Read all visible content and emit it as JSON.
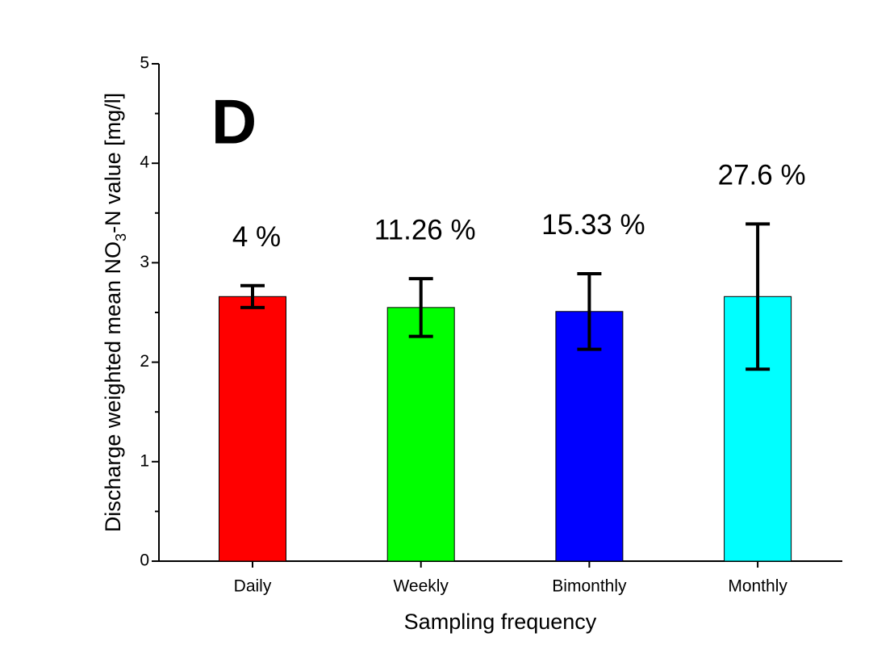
{
  "chart_data": {
    "type": "bar",
    "panel_label": "D",
    "x_label": "Sampling frequency",
    "y_label": {
      "before": "Discharge weighted mean NO",
      "subscript": "3",
      "after": "-N value [mg/l]"
    },
    "categories": [
      "Daily",
      "Weekly",
      "Bimonthly",
      "Monthly"
    ],
    "values": [
      2.66,
      2.55,
      2.51,
      2.66
    ],
    "errors": [
      0.11,
      0.29,
      0.38,
      0.73
    ],
    "colors": [
      "#ff0000",
      "#00ff00",
      "#0000ff",
      "#00ffff"
    ],
    "annotations": [
      "4 %",
      "11.26 %",
      "15.33 %",
      "27.6 %"
    ],
    "ylim": [
      0,
      5
    ],
    "yticks": [
      0,
      1,
      2,
      3,
      4,
      5
    ],
    "yticks_minor": [
      0.5,
      1.5,
      2.5,
      3.5,
      4.5
    ],
    "grid": false
  }
}
